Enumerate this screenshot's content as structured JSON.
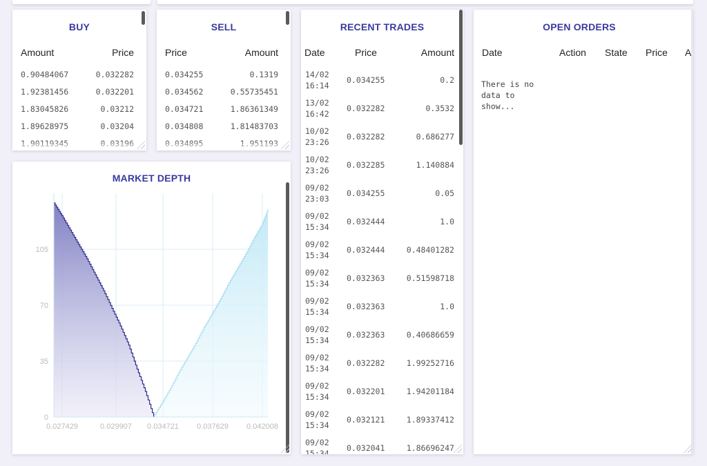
{
  "buy": {
    "title": "BUY",
    "col_amount": "Amount",
    "col_price": "Price",
    "rows": [
      {
        "amount": "0.90484067",
        "price": "0.032282"
      },
      {
        "amount": "1.92381456",
        "price": "0.032201"
      },
      {
        "amount": "1.83045826",
        "price": "0.03212"
      },
      {
        "amount": "1.89628975",
        "price": "0.03204"
      },
      {
        "amount": "1.90119345",
        "price": "0.03196"
      }
    ]
  },
  "sell": {
    "title": "SELL",
    "col_price": "Price",
    "col_amount": "Amount",
    "rows": [
      {
        "price": "0.034255",
        "amount": "0.1319"
      },
      {
        "price": "0.034562",
        "amount": "0.55735451"
      },
      {
        "price": "0.034721",
        "amount": "1.86361349"
      },
      {
        "price": "0.034808",
        "amount": "1.81483703"
      },
      {
        "price": "0.034895",
        "amount": "1.951193"
      }
    ]
  },
  "trades": {
    "title": "RECENT TRADES",
    "col_date": "Date",
    "col_price": "Price",
    "col_amount": "Amount",
    "rows": [
      {
        "date": "14/02",
        "time": "16:14",
        "price": "0.034255",
        "amount": "0.2"
      },
      {
        "date": "13/02",
        "time": "16:42",
        "price": "0.032282",
        "amount": "0.3532"
      },
      {
        "date": "10/02",
        "time": "23:26",
        "price": "0.032282",
        "amount": "0.686277"
      },
      {
        "date": "10/02",
        "time": "23:26",
        "price": "0.032285",
        "amount": "1.140884"
      },
      {
        "date": "09/02",
        "time": "23:03",
        "price": "0.034255",
        "amount": "0.05"
      },
      {
        "date": "09/02",
        "time": "15:34",
        "price": "0.032444",
        "amount": "1.0"
      },
      {
        "date": "09/02",
        "time": "15:34",
        "price": "0.032444",
        "amount": "0.48401282"
      },
      {
        "date": "09/02",
        "time": "15:34",
        "price": "0.032363",
        "amount": "0.51598718"
      },
      {
        "date": "09/02",
        "time": "15:34",
        "price": "0.032363",
        "amount": "1.0"
      },
      {
        "date": "09/02",
        "time": "15:34",
        "price": "0.032363",
        "amount": "0.40686659"
      },
      {
        "date": "09/02",
        "time": "15:34",
        "price": "0.032282",
        "amount": "1.99252716"
      },
      {
        "date": "09/02",
        "time": "15:34",
        "price": "0.032201",
        "amount": "1.94201184"
      },
      {
        "date": "09/02",
        "time": "15:34",
        "price": "0.032121",
        "amount": "1.89337412"
      },
      {
        "date": "09/02",
        "time": "15:34",
        "price": "0.032041",
        "amount": "1.86696247"
      }
    ]
  },
  "orders": {
    "title": "OPEN ORDERS",
    "col_date": "Date",
    "col_action": "Action",
    "col_state": "State",
    "col_price": "Price",
    "col_amount_partial": "A",
    "empty_message": "There is no data to show..."
  },
  "depth": {
    "title": "MARKET DEPTH"
  },
  "chart_data": {
    "type": "area",
    "title": "MARKET DEPTH",
    "xlabel": "",
    "ylabel": "",
    "x_ticks": [
      "0.027429",
      "0.029907",
      "0.034721",
      "0.037629",
      "0.042008"
    ],
    "y_ticks": [
      "0",
      "35",
      "70",
      "105"
    ],
    "ylim": [
      0,
      140
    ],
    "grid": true,
    "bid_color": "#8a8ac8",
    "ask_color": "#c9eaf6",
    "series": [
      {
        "side": "bid",
        "x": [
          0.02693,
          0.0275,
          0.0281,
          0.0287,
          0.0293,
          0.0299,
          0.0305,
          0.0311,
          0.0317,
          0.0323,
          0.0329,
          0.0335,
          0.0341
        ],
        "y": [
          134,
          126,
          117,
          108,
          99,
          89,
          79,
          68,
          57,
          45,
          30,
          16,
          0
        ]
      },
      {
        "side": "ask",
        "x": [
          0.03405,
          0.0347,
          0.0353,
          0.0359,
          0.0365,
          0.0371,
          0.0377,
          0.0383,
          0.0389,
          0.0395,
          0.0401,
          0.0407,
          0.0413,
          0.0419,
          0.0423
        ],
        "y": [
          0,
          9,
          18,
          28,
          37,
          46,
          56,
          65,
          74,
          84,
          93,
          102,
          112,
          121,
          130
        ]
      }
    ]
  }
}
